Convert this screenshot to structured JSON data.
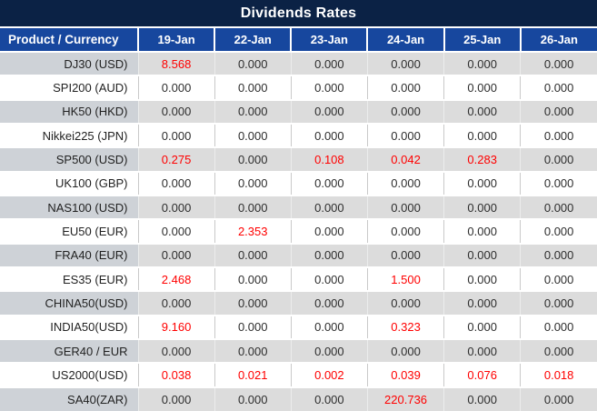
{
  "title": "Dividends Rates",
  "columns": [
    "Product / Currency",
    "19-Jan",
    "22-Jan",
    "23-Jan",
    "24-Jan",
    "25-Jan",
    "26-Jan"
  ],
  "rows": [
    {
      "product": "DJ30 (USD)",
      "values": [
        "8.568",
        "0.000",
        "0.000",
        "0.000",
        "0.000",
        "0.000"
      ]
    },
    {
      "product": "SPI200 (AUD)",
      "values": [
        "0.000",
        "0.000",
        "0.000",
        "0.000",
        "0.000",
        "0.000"
      ]
    },
    {
      "product": "HK50 (HKD)",
      "values": [
        "0.000",
        "0.000",
        "0.000",
        "0.000",
        "0.000",
        "0.000"
      ]
    },
    {
      "product": "Nikkei225 (JPN)",
      "values": [
        "0.000",
        "0.000",
        "0.000",
        "0.000",
        "0.000",
        "0.000"
      ]
    },
    {
      "product": "SP500 (USD)",
      "values": [
        "0.275",
        "0.000",
        "0.108",
        "0.042",
        "0.283",
        "0.000"
      ]
    },
    {
      "product": "UK100 (GBP)",
      "values": [
        "0.000",
        "0.000",
        "0.000",
        "0.000",
        "0.000",
        "0.000"
      ]
    },
    {
      "product": "NAS100 (USD)",
      "values": [
        "0.000",
        "0.000",
        "0.000",
        "0.000",
        "0.000",
        "0.000"
      ]
    },
    {
      "product": "EU50 (EUR)",
      "values": [
        "0.000",
        "2.353",
        "0.000",
        "0.000",
        "0.000",
        "0.000"
      ]
    },
    {
      "product": "FRA40 (EUR)",
      "values": [
        "0.000",
        "0.000",
        "0.000",
        "0.000",
        "0.000",
        "0.000"
      ]
    },
    {
      "product": "ES35 (EUR)",
      "values": [
        "2.468",
        "0.000",
        "0.000",
        "1.500",
        "0.000",
        "0.000"
      ]
    },
    {
      "product": "CHINA50(USD)",
      "values": [
        "0.000",
        "0.000",
        "0.000",
        "0.000",
        "0.000",
        "0.000"
      ]
    },
    {
      "product": "INDIA50(USD)",
      "values": [
        "9.160",
        "0.000",
        "0.000",
        "0.323",
        "0.000",
        "0.000"
      ]
    },
    {
      "product": "GER40 / EUR",
      "values": [
        "0.000",
        "0.000",
        "0.000",
        "0.000",
        "0.000",
        "0.000"
      ]
    },
    {
      "product": "US2000(USD)",
      "values": [
        "0.038",
        "0.021",
        "0.002",
        "0.039",
        "0.076",
        "0.018"
      ]
    },
    {
      "product": "SA40(ZAR)",
      "values": [
        "0.000",
        "0.000",
        "0.000",
        "220.736",
        "0.000",
        "0.000"
      ]
    }
  ],
  "colors": {
    "title_bar": "#0b2245",
    "header_row": "#17479e",
    "stripe_label": "#ced2d7",
    "stripe_cell": "#dcdcdc",
    "value_text": "#2e2e2e",
    "highlight_text": "#ff0000"
  },
  "highlight_rule": "non-zero dividend values shown in red"
}
